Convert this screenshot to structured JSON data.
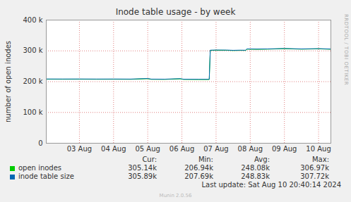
{
  "chart_data": {
    "type": "line",
    "title": "Inode table usage - by week",
    "y_label": "number of open inodes",
    "x": [
      2.53,
      3.0,
      3.5,
      4.0,
      4.5,
      5.0,
      5.5,
      5.6,
      6.0,
      6.45,
      6.55,
      7.0,
      7.3,
      7.33,
      7.5,
      7.8,
      8.0,
      8.2,
      8.37,
      8.4,
      8.7,
      9.0,
      9.5,
      10.0,
      10.5,
      10.86
    ],
    "series": [
      {
        "name": "open inodes",
        "color": "#00cc00",
        "values": [
          207900,
          207800,
          207900,
          207700,
          207800,
          207600,
          209500,
          207500,
          207300,
          209000,
          207200,
          207000,
          206940,
          301500,
          302000,
          301800,
          301000,
          301500,
          301300,
          305500,
          305000,
          305500,
          306970,
          305500,
          306500,
          305140
        ],
        "stats": [
          {
            "value": 305140,
            "label": "305.14k"
          },
          {
            "value": 206940,
            "label": "206.94k"
          },
          {
            "value": 248080,
            "label": "248.08k"
          },
          {
            "value": 306970,
            "label": "306.97k"
          }
        ]
      },
      {
        "name": "inode table size",
        "color": "#0066b3",
        "values": [
          208650,
          208550,
          208650,
          208450,
          208550,
          208350,
          210250,
          208250,
          208050,
          209750,
          207950,
          207750,
          207690,
          302250,
          302750,
          302550,
          301750,
          302250,
          302050,
          306250,
          305750,
          306250,
          307720,
          306250,
          307250,
          305890
        ],
        "stats": [
          {
            "value": 305890,
            "label": "305.89k"
          },
          {
            "value": 207690,
            "label": "207.69k"
          },
          {
            "value": 248830,
            "label": "248.83k"
          },
          {
            "value": 307720,
            "label": "307.72k"
          }
        ]
      }
    ],
    "stats_headers": [
      "Cur:",
      "Min:",
      "Avg:",
      "Max:"
    ],
    "xlim": [
      2.53,
      10.86
    ],
    "xticks": [
      {
        "value": 3.5,
        "label": "03 Aug"
      },
      {
        "value": 4.5,
        "label": "04 Aug"
      },
      {
        "value": 5.5,
        "label": "05 Aug"
      },
      {
        "value": 6.5,
        "label": "06 Aug"
      },
      {
        "value": 7.5,
        "label": "07 Aug"
      },
      {
        "value": 8.5,
        "label": "08 Aug"
      },
      {
        "value": 9.5,
        "label": "09 Aug"
      },
      {
        "value": 10.5,
        "label": "10 Aug"
      }
    ],
    "ylim": [
      0,
      400000
    ],
    "yticks": [
      0,
      {
        "value": 100000,
        "label": "100 k"
      },
      {
        "value": 200000,
        "label": "200 k"
      },
      {
        "value": 300000,
        "label": "300 k"
      },
      {
        "value": 400000,
        "label": "400 k"
      }
    ],
    "grid": true,
    "last_update": "Last update: Sat Aug 10 20:40:14 2024",
    "side_text": "RRDTOOL / TOBI OETIKER",
    "footer": "Munin 2.0.56"
  }
}
